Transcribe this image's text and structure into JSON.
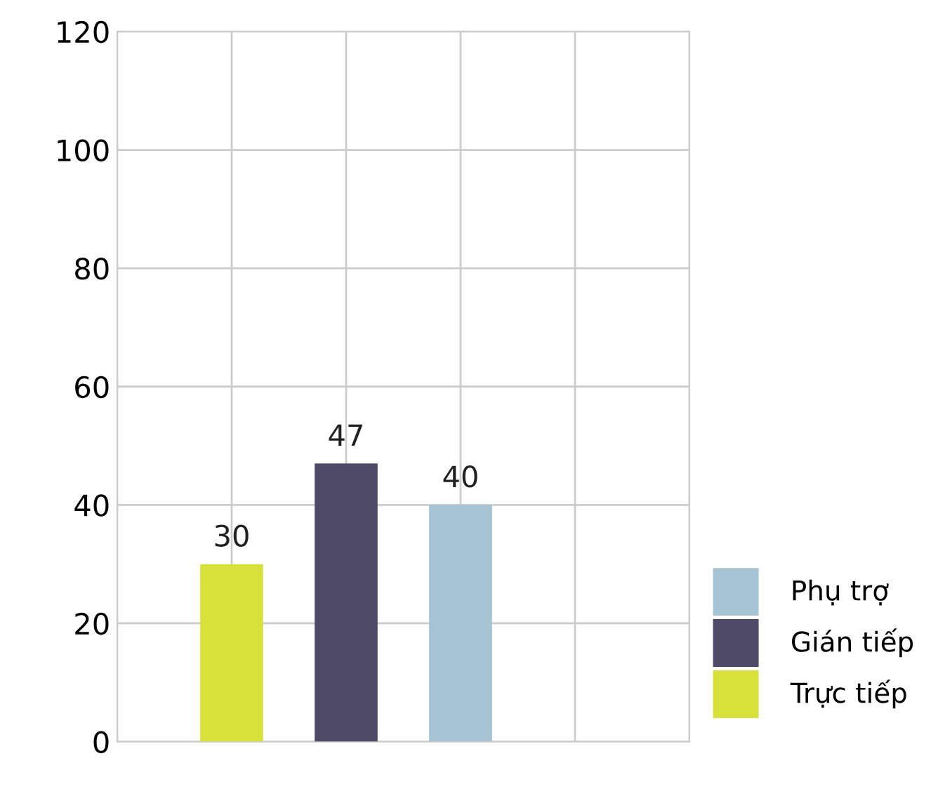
{
  "chart_data": {
    "type": "bar",
    "categories": [
      null,
      null,
      null
    ],
    "series": [
      {
        "name": "Trực tiếp",
        "color": "#d8e03a",
        "values": [
          30,
          null,
          null
        ]
      },
      {
        "name": "Gián tiếp",
        "color": "#4f4a68",
        "values": [
          null,
          47,
          null
        ]
      },
      {
        "name": "Phụ trợ",
        "color": "#a6c3d4",
        "values": [
          null,
          null,
          40
        ]
      }
    ],
    "ylim": [
      0,
      120
    ],
    "yticks": [
      0,
      20,
      40,
      60,
      80,
      100,
      120
    ],
    "stacked": true,
    "grid": true,
    "legend": "bottom right",
    "data_labels": true
  }
}
